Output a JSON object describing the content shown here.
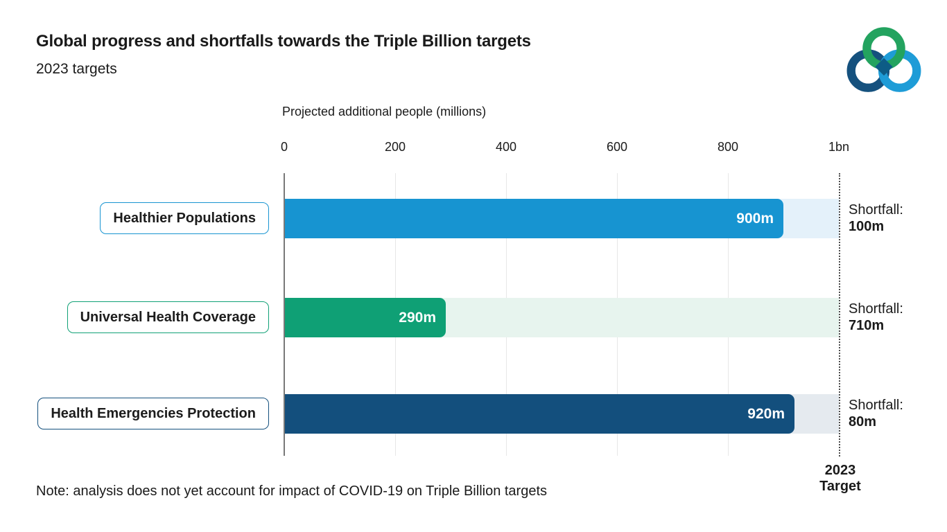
{
  "header": {
    "title": "Global progress and shortfalls towards the Triple Billion targets",
    "subtitle": "2023 targets",
    "logo_name": "triple-billion-rings-logo",
    "logo_colors": {
      "green": "#23A35F",
      "dark_blue": "#15517E",
      "light_blue": "#1E9CD7",
      "center_diamond": "#0D5C86"
    }
  },
  "axis": {
    "title": "Projected additional people (millions)",
    "ticks": [
      "0",
      "200",
      "400",
      "600",
      "800",
      "1bn"
    ]
  },
  "chart_data": {
    "type": "bar",
    "orientation": "horizontal",
    "title": "Global progress and shortfalls towards the Triple Billion targets — 2023 targets",
    "xlabel": "Projected additional people (millions)",
    "xlim": [
      0,
      1000
    ],
    "x_ticks": [
      "0",
      "200",
      "400",
      "600",
      "800",
      "1bn"
    ],
    "grid": true,
    "categories": [
      "Healthier Populations",
      "Universal Health Coverage",
      "Health Emergencies Protection"
    ],
    "series": [
      {
        "name": "Projected additional people (millions)",
        "values": [
          900,
          290,
          920
        ]
      },
      {
        "name": "Shortfall to 2023 target",
        "values": [
          100,
          710,
          80
        ]
      }
    ],
    "target_value": 1000,
    "target_label": "2023 Target",
    "bar_colors": [
      "#1794D1",
      "#0FA075",
      "#134F7D"
    ],
    "track_colors": [
      "#E4F1FA",
      "#E7F4EE",
      "#E5EAEF"
    ]
  },
  "rows": [
    {
      "label": "Healthier Populations",
      "value_label": "900m",
      "shortfall_title": "Shortfall:",
      "shortfall_value": "100m"
    },
    {
      "label": "Universal Health Coverage",
      "value_label": "290m",
      "shortfall_title": "Shortfall:",
      "shortfall_value": "710m"
    },
    {
      "label": "Health Emergencies Protection",
      "value_label": "920m",
      "shortfall_title": "Shortfall:",
      "shortfall_value": "80m"
    }
  ],
  "target_flag": {
    "line1": "2023",
    "line2": "Target"
  },
  "note": "Note: analysis does not yet account for impact of COVID-19 on Triple Billion targets"
}
